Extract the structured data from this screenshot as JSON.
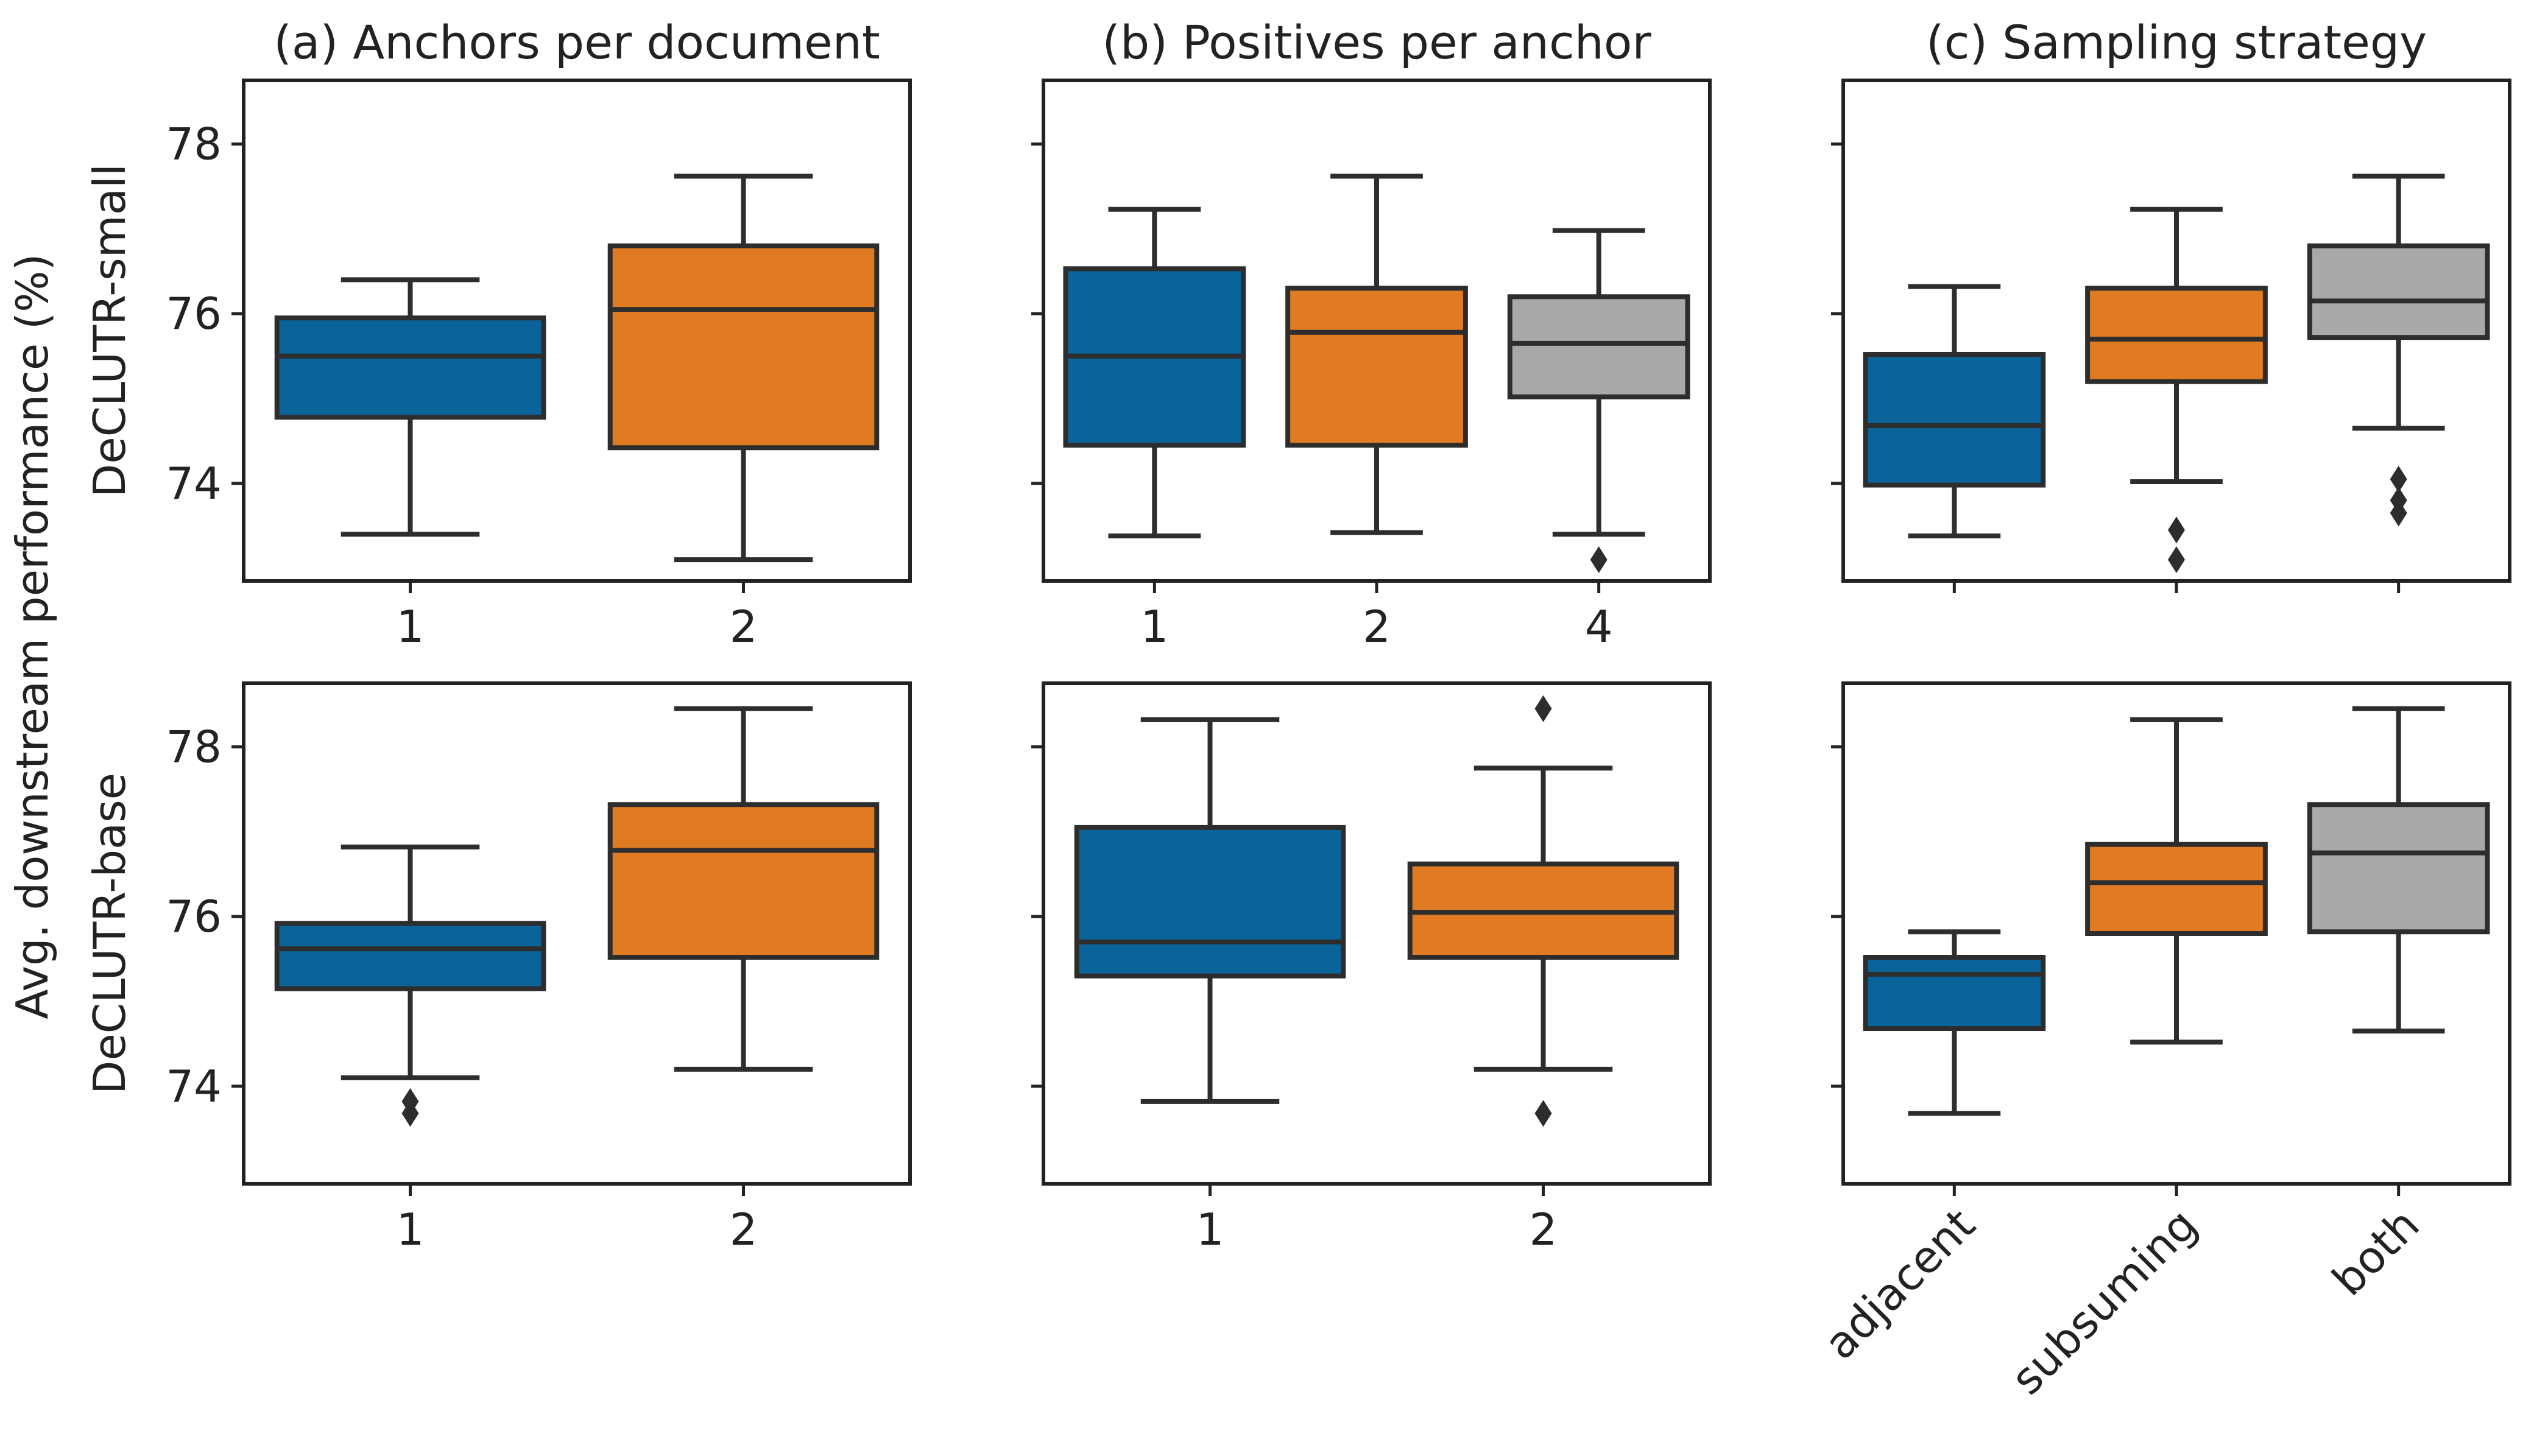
{
  "figure": {
    "ylabel": "Avg. downstream performance (%)",
    "row_labels": [
      "DeCLUTR-small",
      "DeCLUTR-base"
    ]
  },
  "colors": {
    "blue": "#0a6499",
    "orange": "#e07b24",
    "gray": "#a9a9a9",
    "line": "#2d2d2d"
  },
  "chart_data": [
    {
      "type": "box",
      "title": "(a) Anchors per document",
      "row": "DeCLUTR-small",
      "ylim": [
        72.85,
        78.75
      ],
      "yticks": [
        74,
        76,
        78
      ],
      "categories": [
        "1",
        "2"
      ],
      "boxes": [
        {
          "category": "1",
          "color": "blue",
          "whisker_low": 73.4,
          "q1": 74.78,
          "median": 75.5,
          "q3": 75.95,
          "whisker_high": 76.4,
          "outliers": []
        },
        {
          "category": "2",
          "color": "orange",
          "whisker_low": 73.1,
          "q1": 74.42,
          "median": 76.05,
          "q3": 76.8,
          "whisker_high": 77.62,
          "outliers": []
        }
      ]
    },
    {
      "type": "box",
      "title": "(b) Positives per anchor",
      "row": "DeCLUTR-small",
      "ylim": [
        72.85,
        78.75
      ],
      "yticks": [
        74,
        76,
        78
      ],
      "categories": [
        "1",
        "2",
        "4"
      ],
      "boxes": [
        {
          "category": "1",
          "color": "blue",
          "whisker_low": 73.38,
          "q1": 74.45,
          "median": 75.5,
          "q3": 76.53,
          "whisker_high": 77.23,
          "outliers": []
        },
        {
          "category": "2",
          "color": "orange",
          "whisker_low": 73.42,
          "q1": 74.45,
          "median": 75.78,
          "q3": 76.3,
          "whisker_high": 77.62,
          "outliers": []
        },
        {
          "category": "4",
          "color": "gray",
          "whisker_low": 73.4,
          "q1": 75.02,
          "median": 75.65,
          "q3": 76.2,
          "whisker_high": 76.98,
          "outliers": [
            73.1
          ]
        }
      ]
    },
    {
      "type": "box",
      "title": "(c) Sampling strategy",
      "row": "DeCLUTR-small",
      "ylim": [
        72.85,
        78.75
      ],
      "yticks": [
        74,
        76,
        78
      ],
      "categories": [
        "adjacent",
        "subsuming",
        "both"
      ],
      "show_tick_labels": false,
      "boxes": [
        {
          "category": "adjacent",
          "color": "blue",
          "whisker_low": 73.38,
          "q1": 73.98,
          "median": 74.68,
          "q3": 75.52,
          "whisker_high": 76.32,
          "outliers": []
        },
        {
          "category": "subsuming",
          "color": "orange",
          "whisker_low": 74.02,
          "q1": 75.2,
          "median": 75.7,
          "q3": 76.3,
          "whisker_high": 77.23,
          "outliers": [
            73.45,
            73.1
          ]
        },
        {
          "category": "both",
          "color": "gray",
          "whisker_low": 74.65,
          "q1": 75.72,
          "median": 76.15,
          "q3": 76.8,
          "whisker_high": 77.62,
          "outliers": [
            74.05,
            73.8,
            73.65
          ]
        }
      ]
    },
    {
      "type": "box",
      "title": "",
      "row": "DeCLUTR-base",
      "ylim": [
        72.85,
        78.75
      ],
      "yticks": [
        74,
        76,
        78
      ],
      "categories": [
        "1",
        "2"
      ],
      "boxes": [
        {
          "category": "1",
          "color": "blue",
          "whisker_low": 74.1,
          "q1": 75.15,
          "median": 75.62,
          "q3": 75.92,
          "whisker_high": 76.82,
          "outliers": [
            73.82,
            73.68
          ]
        },
        {
          "category": "2",
          "color": "orange",
          "whisker_low": 74.2,
          "q1": 75.52,
          "median": 76.78,
          "q3": 77.32,
          "whisker_high": 78.45,
          "outliers": []
        }
      ]
    },
    {
      "type": "box",
      "title": "",
      "row": "DeCLUTR-base",
      "ylim": [
        72.85,
        78.75
      ],
      "yticks": [
        74,
        76,
        78
      ],
      "categories": [
        "1",
        "2"
      ],
      "boxes": [
        {
          "category": "1",
          "color": "blue",
          "whisker_low": 73.82,
          "q1": 75.3,
          "median": 75.7,
          "q3": 77.05,
          "whisker_high": 78.32,
          "outliers": []
        },
        {
          "category": "2",
          "color": "orange",
          "whisker_low": 74.2,
          "q1": 75.52,
          "median": 76.05,
          "q3": 76.62,
          "whisker_high": 77.75,
          "outliers": [
            78.45,
            73.68
          ]
        }
      ]
    },
    {
      "type": "box",
      "title": "",
      "row": "DeCLUTR-base",
      "ylim": [
        72.85,
        78.75
      ],
      "yticks": [
        74,
        76,
        78
      ],
      "categories": [
        "adjacent",
        "subsuming",
        "both"
      ],
      "rotate_tick_labels": true,
      "boxes": [
        {
          "category": "adjacent",
          "color": "blue",
          "whisker_low": 73.68,
          "q1": 74.68,
          "median": 75.32,
          "q3": 75.52,
          "whisker_high": 75.82,
          "outliers": []
        },
        {
          "category": "subsuming",
          "color": "orange",
          "whisker_low": 74.52,
          "q1": 75.8,
          "median": 76.4,
          "q3": 76.85,
          "whisker_high": 78.32,
          "outliers": []
        },
        {
          "category": "both",
          "color": "gray",
          "whisker_low": 74.65,
          "q1": 75.82,
          "median": 76.75,
          "q3": 77.32,
          "whisker_high": 78.45,
          "outliers": []
        }
      ]
    }
  ]
}
